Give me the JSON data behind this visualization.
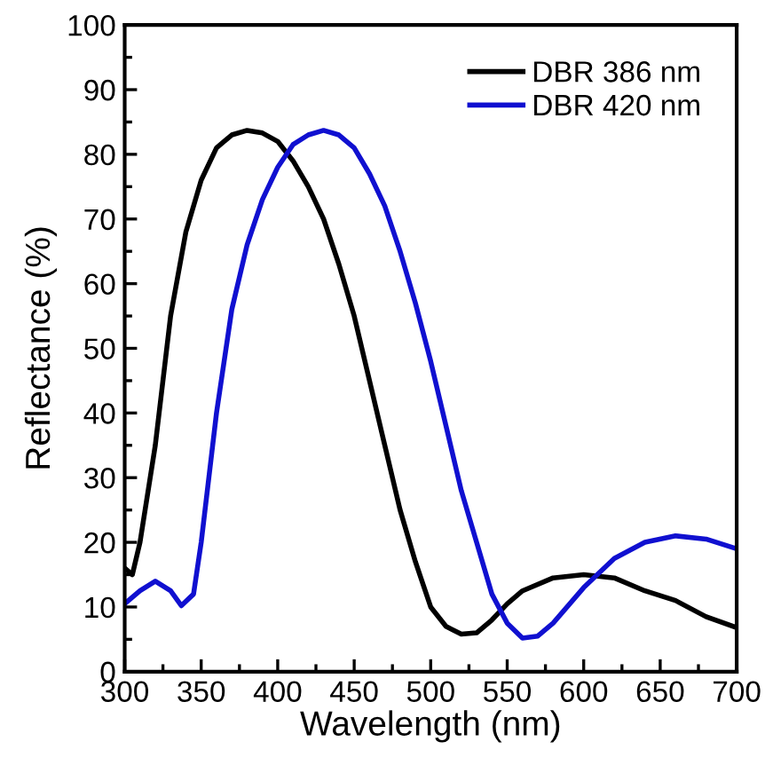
{
  "chart_data": {
    "type": "line",
    "xlabel": "Wavelength (nm)",
    "ylabel": "Reflectance (%)",
    "xlim": [
      300,
      700
    ],
    "xticks": [
      300,
      350,
      400,
      450,
      500,
      550,
      600,
      650,
      700
    ],
    "ylim": [
      0,
      100
    ],
    "yticks": [
      0,
      10,
      20,
      30,
      40,
      50,
      60,
      70,
      80,
      90,
      100
    ],
    "grid": false,
    "legend": "top right",
    "marker": "none",
    "line_style": "solid",
    "series": [
      {
        "name": "DBR 386 nm",
        "color": "#000000",
        "x": [
          300,
          305,
          310,
          320,
          330,
          340,
          350,
          360,
          370,
          380,
          390,
          400,
          410,
          420,
          430,
          440,
          450,
          460,
          470,
          480,
          490,
          500,
          510,
          520,
          530,
          540,
          550,
          560,
          580,
          600,
          620,
          640,
          660,
          680,
          700
        ],
        "values": [
          16,
          15,
          20,
          35,
          55,
          68,
          76,
          81,
          83,
          83.7,
          83.3,
          82,
          79,
          75,
          70,
          63,
          55,
          45,
          35,
          25,
          17,
          10,
          7,
          5.8,
          6,
          8,
          10.5,
          12.5,
          14.5,
          15,
          14.5,
          12.5,
          11,
          8.5,
          6.8
        ]
      },
      {
        "name": "DBR 420 nm",
        "color": "#1010d0",
        "x": [
          300,
          310,
          320,
          330,
          337,
          345,
          350,
          360,
          370,
          380,
          390,
          400,
          410,
          420,
          430,
          440,
          450,
          460,
          470,
          480,
          490,
          500,
          510,
          520,
          530,
          540,
          550,
          560,
          570,
          580,
          600,
          620,
          640,
          660,
          680,
          700
        ],
        "values": [
          10.5,
          12.5,
          14,
          12.5,
          10.2,
          12,
          20,
          40,
          56,
          66,
          73,
          78,
          81.5,
          83,
          83.7,
          83,
          81,
          77,
          72,
          65,
          57,
          48,
          38,
          28,
          20,
          12,
          7.5,
          5.2,
          5.5,
          7.5,
          13,
          17.5,
          20,
          21,
          20.5,
          19
        ]
      }
    ]
  }
}
